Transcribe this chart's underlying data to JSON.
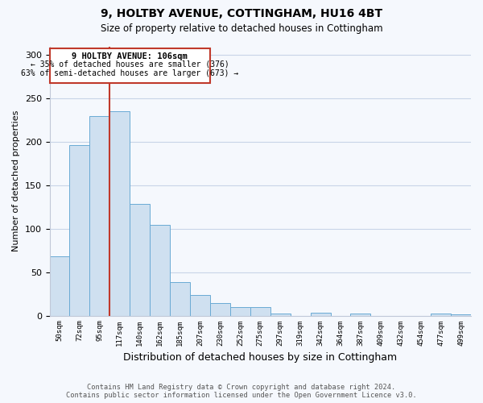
{
  "title": "9, HOLTBY AVENUE, COTTINGHAM, HU16 4BT",
  "subtitle": "Size of property relative to detached houses in Cottingham",
  "xlabel": "Distribution of detached houses by size in Cottingham",
  "ylabel": "Number of detached properties",
  "bar_labels": [
    "50sqm",
    "72sqm",
    "95sqm",
    "117sqm",
    "140sqm",
    "162sqm",
    "185sqm",
    "207sqm",
    "230sqm",
    "252sqm",
    "275sqm",
    "297sqm",
    "319sqm",
    "342sqm",
    "364sqm",
    "387sqm",
    "409sqm",
    "432sqm",
    "454sqm",
    "477sqm",
    "499sqm"
  ],
  "bar_values": [
    68,
    196,
    230,
    235,
    129,
    104,
    39,
    24,
    14,
    10,
    10,
    2,
    0,
    3,
    0,
    2,
    0,
    0,
    0,
    2,
    1
  ],
  "bar_color": "#cfe0f0",
  "bar_edge_color": "#6aaad4",
  "marker_label": "9 HOLTBY AVENUE: 106sqm",
  "annotation_line1": "← 35% of detached houses are smaller (376)",
  "annotation_line2": "63% of semi-detached houses are larger (673) →",
  "vline_color": "#c0392b",
  "box_edge_color": "#c0392b",
  "ylim": [
    0,
    310
  ],
  "yticks": [
    0,
    50,
    100,
    150,
    200,
    250,
    300
  ],
  "footer_line1": "Contains HM Land Registry data © Crown copyright and database right 2024.",
  "footer_line2": "Contains public sector information licensed under the Open Government Licence v3.0.",
  "bg_color": "#f5f8fd",
  "grid_color": "#c8d4e8"
}
